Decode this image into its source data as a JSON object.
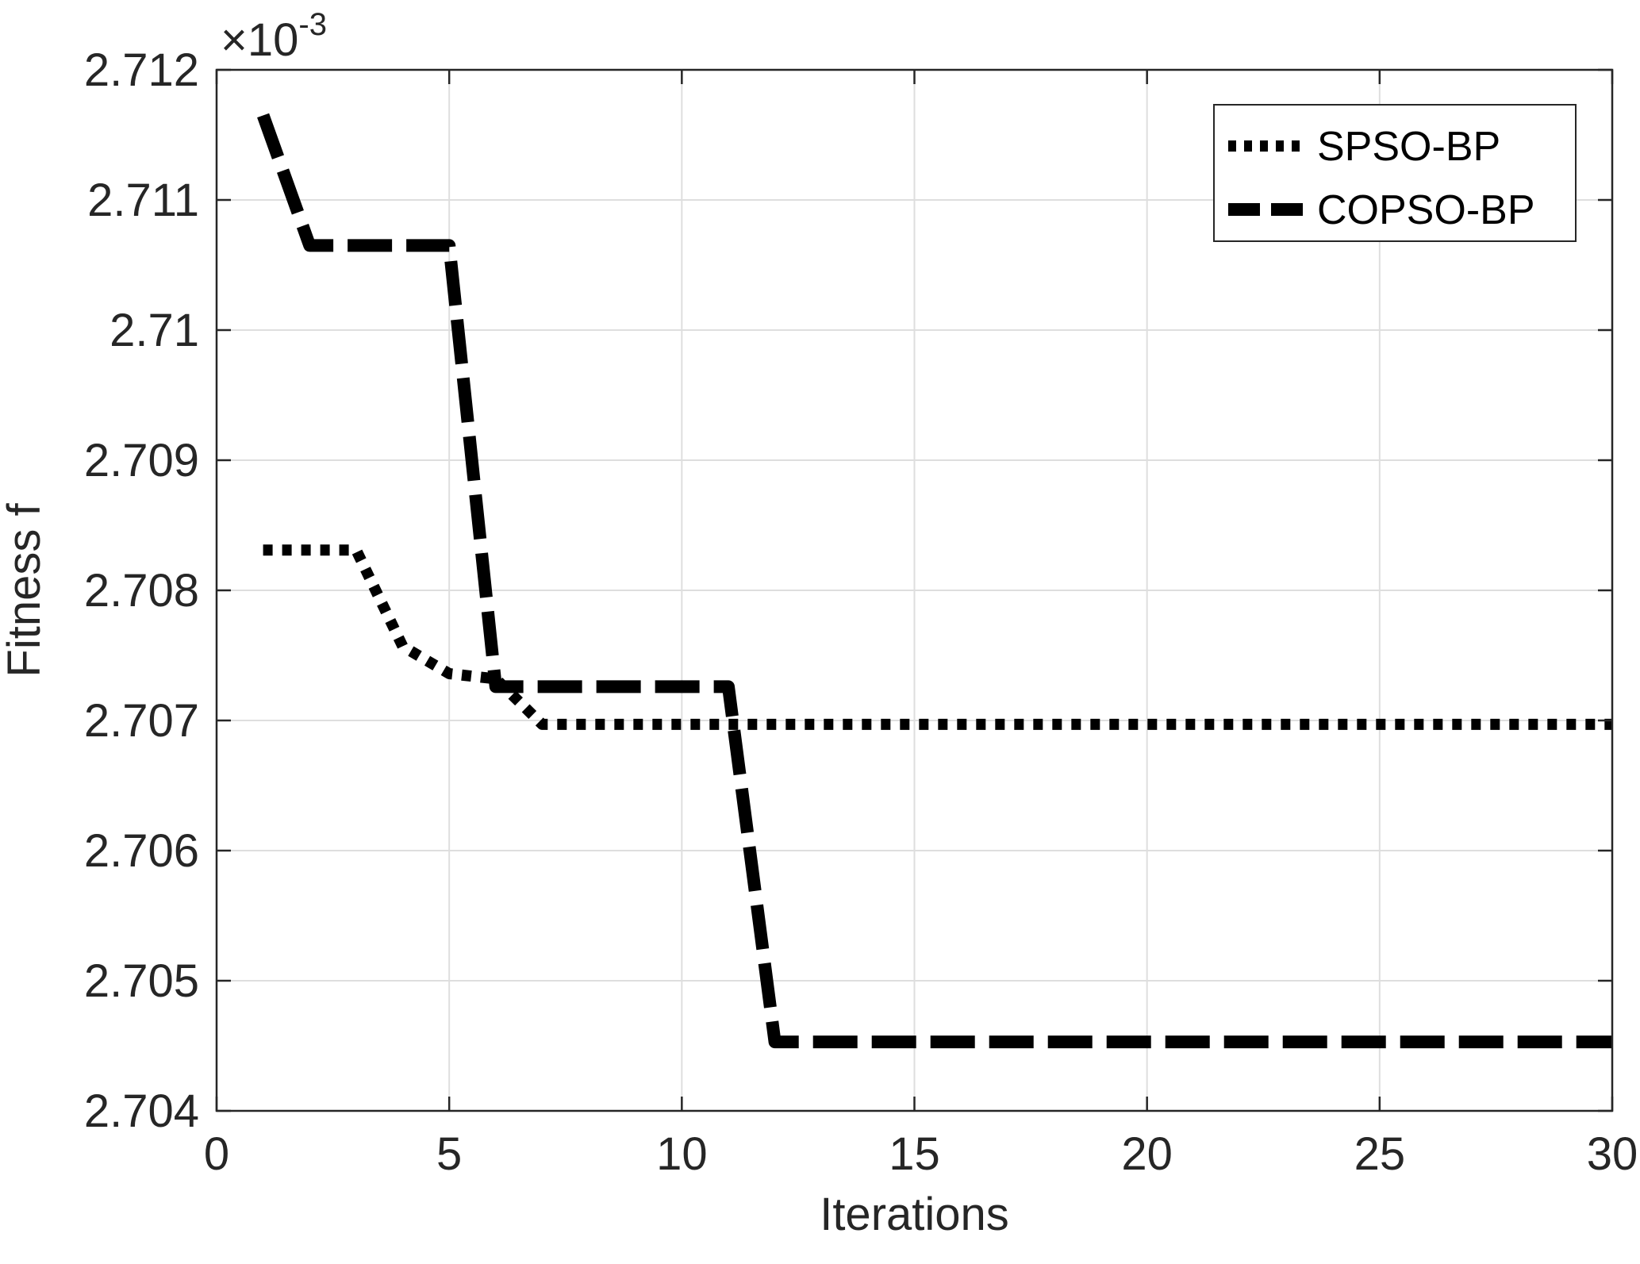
{
  "chart_data": {
    "type": "line",
    "title": "",
    "xlabel": "Iterations",
    "ylabel": "Fitness  f",
    "exponent_label": {
      "prefix": "×10",
      "power": "-3"
    },
    "xlim": [
      0,
      30
    ],
    "ylim": [
      2.704,
      2.712
    ],
    "xticks": [
      0,
      5,
      10,
      15,
      20,
      25,
      30
    ],
    "xtick_labels": [
      "0",
      "5",
      "10",
      "15",
      "20",
      "25",
      "30"
    ],
    "yticks": [
      2.704,
      2.705,
      2.706,
      2.707,
      2.708,
      2.709,
      2.71,
      2.711,
      2.712
    ],
    "ytick_labels": [
      "2.704",
      "2.705",
      "2.706",
      "2.707",
      "2.708",
      "2.709",
      "2.71",
      "2.711",
      "2.712"
    ],
    "grid": true,
    "legend_position": "top-right",
    "series": [
      {
        "name": "SPSO-BP",
        "style": "dotted",
        "x": [
          1,
          2,
          3,
          4,
          5,
          6,
          7,
          8,
          9,
          10,
          11,
          12,
          13,
          14,
          15,
          16,
          17,
          18,
          19,
          20,
          21,
          22,
          23,
          24,
          25,
          26,
          27,
          28,
          29,
          30
        ],
        "values": [
          2.70831,
          2.70831,
          2.70831,
          2.70757,
          2.70736,
          2.70732,
          2.70697,
          2.70697,
          2.70697,
          2.70697,
          2.70697,
          2.70697,
          2.70697,
          2.70697,
          2.70697,
          2.70697,
          2.70697,
          2.70697,
          2.70697,
          2.70697,
          2.70697,
          2.70697,
          2.70697,
          2.70697,
          2.70697,
          2.70697,
          2.70697,
          2.70697,
          2.70697,
          2.70697
        ]
      },
      {
        "name": "COPSO-BP",
        "style": "dashed",
        "x": [
          1,
          2,
          3,
          4,
          5,
          6,
          7,
          8,
          9,
          10,
          11,
          12,
          13,
          14,
          15,
          16,
          17,
          18,
          19,
          20,
          21,
          22,
          23,
          24,
          25,
          26,
          27,
          28,
          29,
          30
        ],
        "values": [
          2.71165,
          2.71065,
          2.71065,
          2.71065,
          2.71065,
          2.70726,
          2.70726,
          2.70726,
          2.70726,
          2.70726,
          2.70726,
          2.70453,
          2.70453,
          2.70453,
          2.70453,
          2.70453,
          2.70453,
          2.70453,
          2.70453,
          2.70453,
          2.70453,
          2.70453,
          2.70453,
          2.70453,
          2.70453,
          2.70453,
          2.70453,
          2.70453,
          2.70453,
          2.70453
        ]
      }
    ]
  }
}
